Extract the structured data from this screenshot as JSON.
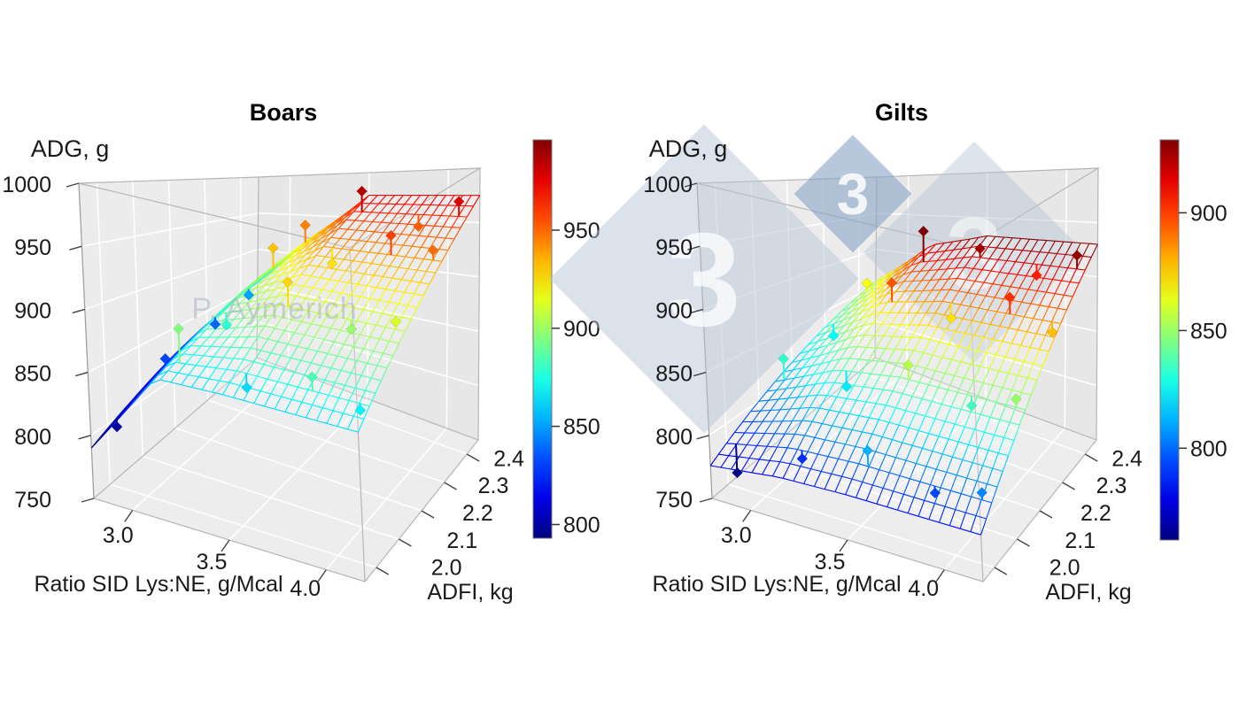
{
  "watermarks": {
    "author": "P. Aymerich",
    "logo_digits": [
      "3",
      "3",
      "3"
    ]
  },
  "colors": {
    "background": "#ffffff",
    "panel_floor": "#ededed",
    "panel_wall": "#ececec",
    "panel_back": "#e7e7e7",
    "grid": "#ffffff",
    "edge": "#b5b5b5",
    "tick": "#444444",
    "text": "#1a1a1a",
    "watermark_text": "#aab4be",
    "logo_pale": "#b7c6d8",
    "logo_dark": "#8da7c7",
    "colormap": "jet"
  },
  "chart_data": [
    {
      "key": "boars",
      "type": "surface3d",
      "title": "Boars",
      "z_axis": {
        "label": "ADG, g",
        "range": [
          750,
          1000
        ],
        "tick_values": [
          750,
          800,
          850,
          900,
          950,
          1000
        ],
        "tick_labels": [
          "750",
          "800",
          "850",
          "900",
          "950",
          "1000"
        ]
      },
      "x_axis": {
        "label": "Ratio SID Lys:NE, g/Mcal",
        "range": [
          2.8,
          4.2
        ],
        "tick_values": [
          3.0,
          3.5,
          4.0
        ],
        "tick_labels": [
          "3.0",
          "3.5",
          "4.0"
        ]
      },
      "y_axis": {
        "label": "ADFI, kg",
        "range": [
          1.95,
          2.45
        ],
        "tick_values": [
          2.0,
          2.1,
          2.2,
          2.3,
          2.4
        ],
        "tick_labels": [
          "2.0",
          "2.1",
          "2.2",
          "2.3",
          "2.4"
        ]
      },
      "colorbar": {
        "range": [
          793,
          996
        ],
        "tick_values": [
          800,
          850,
          900,
          950
        ],
        "tick_labels": [
          "800",
          "850",
          "900",
          "950"
        ]
      },
      "surface": {
        "x": [
          2.8,
          3.15,
          3.5,
          3.85,
          4.2
        ],
        "y": [
          1.95,
          2.075,
          2.2,
          2.325,
          2.45
        ],
        "z": [
          [
            790,
            860,
            862,
            862,
            862
          ],
          [
            806,
            876,
            890,
            890,
            890
          ],
          [
            823,
            893,
            918,
            918,
            918
          ],
          [
            839,
            909,
            946,
            946,
            946
          ],
          [
            855,
            925,
            975,
            975,
            975
          ]
        ]
      },
      "points": [
        {
          "lys": 2.85,
          "adfi": 2.0,
          "adg": 800
        },
        {
          "lys": 3.2,
          "adfi": 2.0,
          "adg": 895
        },
        {
          "lys": 3.55,
          "adfi": 2.0,
          "adg": 862
        },
        {
          "lys": 3.9,
          "adfi": 2.0,
          "adg": 884
        },
        {
          "lys": 4.15,
          "adfi": 2.0,
          "adg": 868
        },
        {
          "lys": 2.85,
          "adfi": 2.15,
          "adg": 832
        },
        {
          "lys": 3.2,
          "adfi": 2.15,
          "adg": 878
        },
        {
          "lys": 3.55,
          "adfi": 2.15,
          "adg": 928
        },
        {
          "lys": 3.9,
          "adfi": 2.15,
          "adg": 899
        },
        {
          "lys": 4.15,
          "adfi": 2.15,
          "adg": 913
        },
        {
          "lys": 2.85,
          "adfi": 2.3,
          "adg": 838
        },
        {
          "lys": 3.2,
          "adfi": 2.3,
          "adg": 932
        },
        {
          "lys": 3.55,
          "adfi": 2.3,
          "adg": 925
        },
        {
          "lys": 3.9,
          "adfi": 2.3,
          "adg": 958
        },
        {
          "lys": 4.15,
          "adfi": 2.3,
          "adg": 949
        },
        {
          "lys": 2.85,
          "adfi": 2.4,
          "adg": 851
        },
        {
          "lys": 3.2,
          "adfi": 2.4,
          "adg": 945
        },
        {
          "lys": 3.55,
          "adfi": 2.4,
          "adg": 985
        },
        {
          "lys": 3.9,
          "adfi": 2.4,
          "adg": 952
        },
        {
          "lys": 4.15,
          "adfi": 2.4,
          "adg": 977
        }
      ]
    },
    {
      "key": "gilts",
      "type": "surface3d",
      "title": "Gilts",
      "z_axis": {
        "label": "ADG, g",
        "range": [
          750,
          1000
        ],
        "tick_values": [
          750,
          800,
          850,
          900,
          950,
          1000
        ],
        "tick_labels": [
          "750",
          "800",
          "850",
          "900",
          "950",
          "1000"
        ]
      },
      "x_axis": {
        "label": "Ratio SID Lys:NE, g/Mcal",
        "range": [
          2.8,
          4.2
        ],
        "tick_values": [
          3.0,
          3.5,
          4.0
        ],
        "tick_labels": [
          "3.0",
          "3.5",
          "4.0"
        ]
      },
      "y_axis": {
        "label": "ADFI, kg",
        "range": [
          1.95,
          2.45
        ],
        "tick_values": [
          2.0,
          2.1,
          2.2,
          2.3,
          2.4
        ],
        "tick_labels": [
          "2.0",
          "2.1",
          "2.2",
          "2.3",
          "2.4"
        ]
      },
      "colorbar": {
        "range": [
          761,
          931
        ],
        "tick_values": [
          800,
          850,
          900
        ],
        "tick_labels": [
          "800",
          "850",
          "900"
        ]
      },
      "surface": {
        "x": [
          2.8,
          3.15,
          3.5,
          3.85,
          4.2
        ],
        "y": [
          1.95,
          2.075,
          2.2,
          2.325,
          2.45
        ],
        "z": [
          [
            776,
            783,
            785,
            785,
            785
          ],
          [
            796,
            816,
            821,
            821,
            821
          ],
          [
            816,
            848,
            858,
            858,
            858
          ],
          [
            836,
            881,
            894,
            894,
            894
          ],
          [
            856,
            914,
            930,
            930,
            930
          ]
        ]
      },
      "points": [
        {
          "lys": 2.85,
          "adfi": 2.0,
          "adg": 762
        },
        {
          "lys": 3.2,
          "adfi": 2.0,
          "adg": 790
        },
        {
          "lys": 3.55,
          "adfi": 2.0,
          "adg": 812
        },
        {
          "lys": 3.9,
          "adfi": 2.0,
          "adg": 794
        },
        {
          "lys": 4.15,
          "adfi": 2.0,
          "adg": 805
        },
        {
          "lys": 2.85,
          "adfi": 2.15,
          "adg": 832
        },
        {
          "lys": 3.2,
          "adfi": 2.15,
          "adg": 822
        },
        {
          "lys": 3.55,
          "adfi": 2.15,
          "adg": 856
        },
        {
          "lys": 3.9,
          "adfi": 2.15,
          "adg": 835
        },
        {
          "lys": 4.15,
          "adfi": 2.15,
          "adg": 850
        },
        {
          "lys": 2.85,
          "adfi": 2.3,
          "adg": 825
        },
        {
          "lys": 3.2,
          "adfi": 2.3,
          "adg": 896
        },
        {
          "lys": 3.55,
          "adfi": 2.3,
          "adg": 872
        },
        {
          "lys": 3.9,
          "adfi": 2.3,
          "adg": 902
        },
        {
          "lys": 4.15,
          "adfi": 2.3,
          "adg": 878
        },
        {
          "lys": 2.85,
          "adfi": 2.4,
          "adg": 866
        },
        {
          "lys": 3.2,
          "adfi": 2.4,
          "adg": 938
        },
        {
          "lys": 3.55,
          "adfi": 2.4,
          "adg": 925
        },
        {
          "lys": 3.9,
          "adfi": 2.4,
          "adg": 905
        },
        {
          "lys": 4.15,
          "adfi": 2.4,
          "adg": 928
        }
      ]
    }
  ]
}
